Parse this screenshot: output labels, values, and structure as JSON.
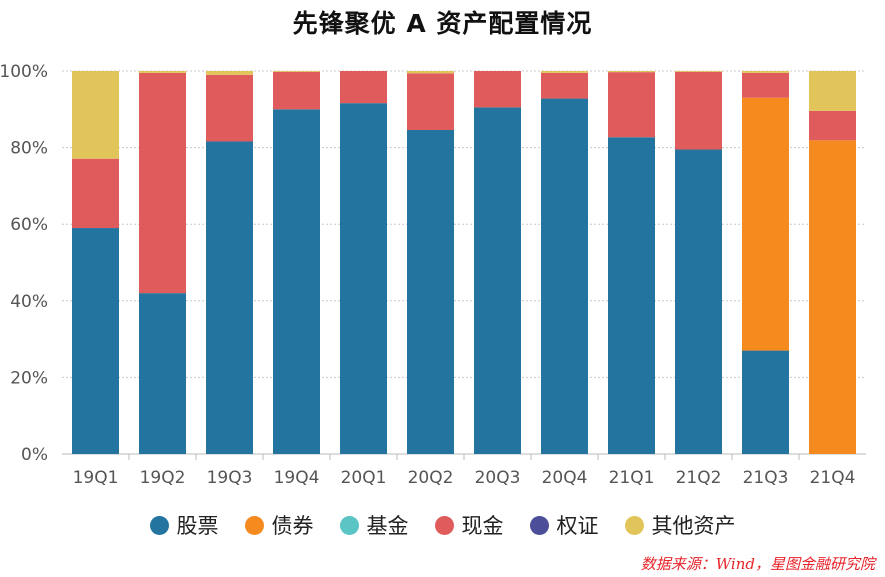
{
  "chart_data": {
    "type": "bar",
    "stacked": true,
    "title": "先锋聚优 A 资产配置情况",
    "xlabel": "",
    "ylabel": "",
    "ylim": [
      0,
      100
    ],
    "y_ticks": [
      "0%",
      "20%",
      "40%",
      "60%",
      "80%",
      "100%"
    ],
    "categories": [
      "19Q1",
      "19Q2",
      "19Q3",
      "19Q4",
      "20Q1",
      "20Q2",
      "20Q3",
      "20Q4",
      "21Q1",
      "21Q2",
      "21Q3",
      "21Q4"
    ],
    "series": [
      {
        "name": "股票",
        "color": "#2474a0",
        "values": [
          59,
          42,
          81.6,
          90,
          91.6,
          84.6,
          90.5,
          92.8,
          82.7,
          79.5,
          27,
          0
        ]
      },
      {
        "name": "债券",
        "color": "#f58a1f",
        "values": [
          0,
          0,
          0,
          0,
          0,
          0,
          0,
          0,
          0,
          0,
          66,
          81.9
        ]
      },
      {
        "name": "基金",
        "color": "#5bc4c4",
        "values": [
          0,
          0,
          0,
          0,
          0,
          0,
          0,
          0,
          0,
          0,
          0,
          0
        ]
      },
      {
        "name": "现金",
        "color": "#e05c5c",
        "values": [
          18.1,
          57.5,
          17.4,
          9.8,
          8.4,
          14.8,
          9.5,
          6.7,
          17,
          20.3,
          6.5,
          7.7
        ]
      },
      {
        "name": "权证",
        "color": "#4c4e9a",
        "values": [
          0,
          0,
          0,
          0,
          0,
          0,
          0,
          0,
          0,
          0,
          0,
          0
        ]
      },
      {
        "name": "其他资产",
        "color": "#e2c55a",
        "values": [
          22.9,
          0.5,
          1.0,
          0.2,
          0,
          0.6,
          0,
          0.5,
          0.3,
          0.2,
          0.5,
          10.4
        ]
      }
    ],
    "grid": true,
    "legend_position": "bottom"
  },
  "source_note": "数据来源：Wind，星图金融研究院"
}
